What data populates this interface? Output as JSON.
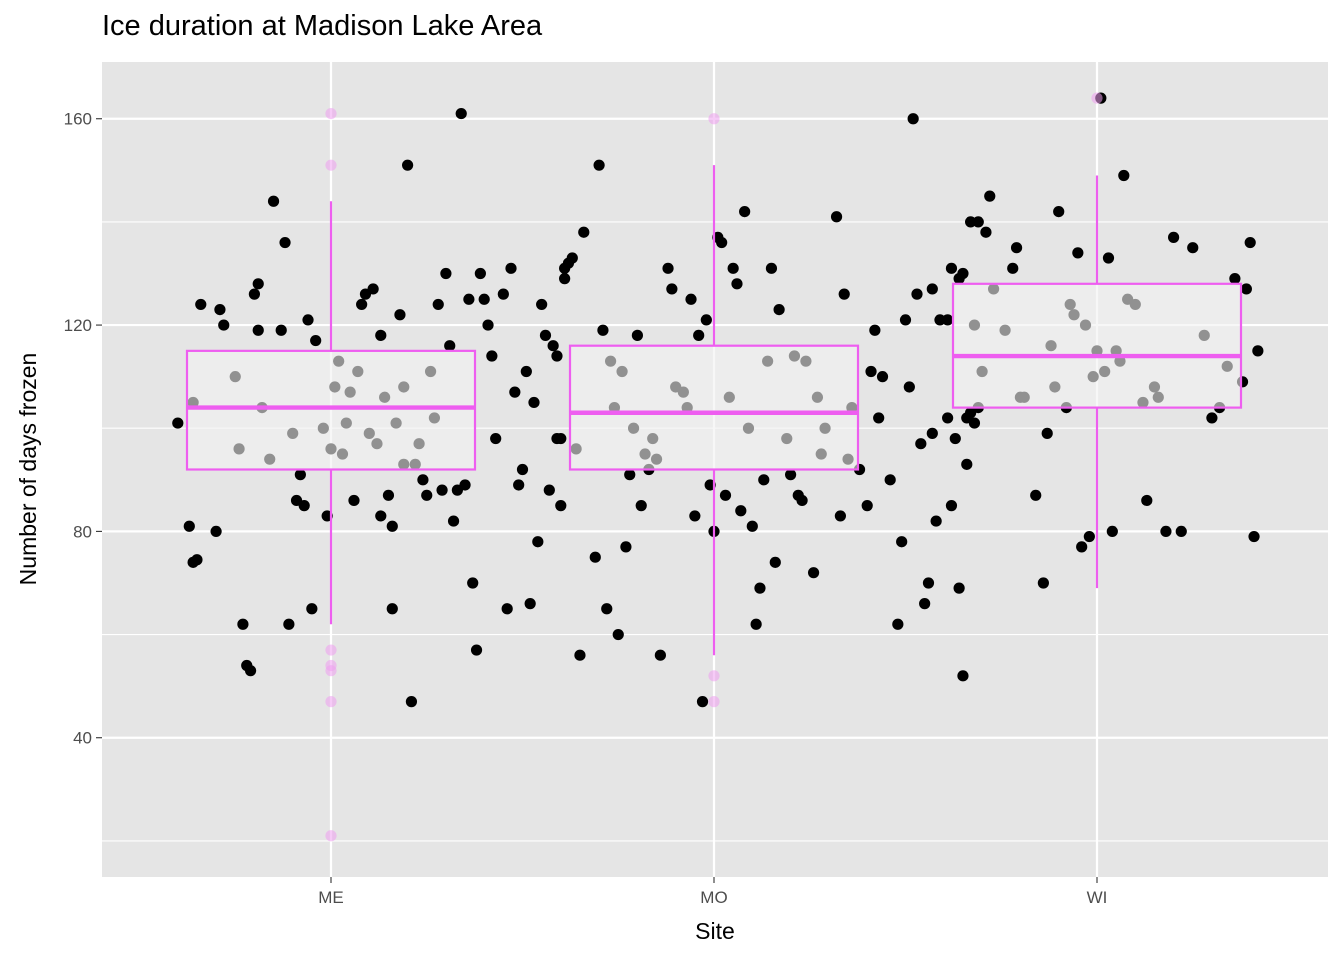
{
  "chart_data": {
    "type": "scatter",
    "title": "Ice duration at Madison Lake Area",
    "xlabel": "Site",
    "ylabel": "Number of days frozen",
    "categories": [
      "ME",
      "MO",
      "WI"
    ],
    "ylim": [
      13,
      171
    ],
    "yticks": [
      40,
      80,
      120,
      160
    ],
    "grid": true,
    "colors": {
      "panel": "#e5e5e5",
      "grid": "#ffffff",
      "points": "#000000",
      "box": "#ee5ef0",
      "box_fill": "#f2f2f2",
      "outlier": "#ee9ef0"
    },
    "boxplots": [
      {
        "site": "ME",
        "q1": 92,
        "median": 104,
        "q3": 115,
        "whisker_low": 62,
        "whisker_high": 144,
        "outliers": [
          21,
          47,
          53,
          54,
          57,
          151,
          161
        ]
      },
      {
        "site": "MO",
        "q1": 92,
        "median": 103,
        "q3": 116,
        "whisker_low": 56,
        "whisker_high": 151,
        "outliers": [
          47,
          52,
          160
        ]
      },
      {
        "site": "WI",
        "q1": 104,
        "median": 114,
        "q3": 128,
        "whisker_low": 69,
        "whisker_high": 149,
        "outliers": [
          164
        ]
      }
    ],
    "series": [
      {
        "site": "ME",
        "points": [
          [
            0.6,
            101
          ],
          [
            0.64,
            105
          ],
          [
            0.63,
            81
          ],
          [
            0.64,
            74
          ],
          [
            0.65,
            74.5
          ],
          [
            0.66,
            124
          ],
          [
            0.7,
            80
          ],
          [
            0.71,
            123
          ],
          [
            0.72,
            120
          ],
          [
            0.75,
            110
          ],
          [
            0.76,
            96
          ],
          [
            0.77,
            62
          ],
          [
            0.78,
            54
          ],
          [
            0.79,
            53
          ],
          [
            0.8,
            126
          ],
          [
            0.81,
            128
          ],
          [
            0.81,
            119
          ],
          [
            0.82,
            104
          ],
          [
            0.84,
            94
          ],
          [
            0.85,
            144
          ],
          [
            0.87,
            119
          ],
          [
            0.88,
            136
          ],
          [
            0.89,
            62
          ],
          [
            0.9,
            99
          ],
          [
            0.91,
            86
          ],
          [
            0.92,
            91
          ],
          [
            0.93,
            85
          ],
          [
            0.94,
            121
          ],
          [
            0.95,
            65
          ],
          [
            0.96,
            117
          ],
          [
            0.99,
            83
          ],
          [
            1.0,
            96
          ],
          [
            1.01,
            108
          ],
          [
            1.02,
            113
          ],
          [
            1.04,
            101
          ],
          [
            1.06,
            86
          ],
          [
            1.07,
            111
          ],
          [
            1.08,
            124
          ],
          [
            1.09,
            126
          ],
          [
            1.1,
            99
          ],
          [
            1.11,
            127
          ],
          [
            1.12,
            97
          ],
          [
            1.13,
            118
          ],
          [
            1.14,
            106
          ],
          [
            1.15,
            87
          ],
          [
            1.16,
            81
          ],
          [
            1.16,
            65
          ],
          [
            1.17,
            101
          ],
          [
            1.18,
            122
          ],
          [
            1.19,
            108
          ],
          [
            1.2,
            151
          ],
          [
            1.21,
            47
          ],
          [
            1.22,
            93
          ],
          [
            1.23,
            97
          ],
          [
            1.24,
            90
          ],
          [
            1.25,
            87
          ],
          [
            1.26,
            111
          ],
          [
            1.28,
            124
          ],
          [
            1.29,
            88
          ],
          [
            1.3,
            130
          ],
          [
            1.31,
            116
          ],
          [
            1.32,
            82
          ],
          [
            1.33,
            88
          ],
          [
            1.34,
            161
          ],
          [
            1.35,
            89
          ],
          [
            1.36,
            125
          ],
          [
            1.37,
            70
          ],
          [
            1.38,
            57
          ],
          [
            1.39,
            130
          ],
          [
            1.4,
            125
          ],
          [
            1.41,
            120
          ],
          [
            1.42,
            114
          ],
          [
            1.45,
            126
          ],
          [
            1.46,
            65
          ],
          [
            1.47,
            131
          ],
          [
            1.48,
            107
          ],
          [
            1.49,
            89
          ],
          [
            1.5,
            92
          ],
          [
            1.51,
            111
          ],
          [
            1.52,
            66
          ],
          [
            1.53,
            105
          ],
          [
            1.54,
            78
          ],
          [
            1.55,
            124
          ],
          [
            1.57,
            88
          ],
          [
            1.58,
            116
          ],
          [
            1.59,
            114
          ],
          [
            1.6,
            98
          ],
          [
            1.61,
            131
          ],
          [
            1.13,
            83
          ],
          [
            1.03,
            95
          ],
          [
            0.98,
            100
          ],
          [
            1.05,
            107
          ],
          [
            1.19,
            93
          ],
          [
            1.27,
            102
          ],
          [
            1.43,
            98
          ],
          [
            1.56,
            118
          ]
        ]
      },
      {
        "site": "MO",
        "points": [
          [
            1.59,
            98
          ],
          [
            1.6,
            85
          ],
          [
            1.61,
            129
          ],
          [
            1.62,
            132
          ],
          [
            1.63,
            133
          ],
          [
            1.64,
            96
          ],
          [
            1.65,
            56
          ],
          [
            1.66,
            138
          ],
          [
            1.69,
            75
          ],
          [
            1.7,
            151
          ],
          [
            1.71,
            119
          ],
          [
            1.72,
            65
          ],
          [
            1.73,
            113
          ],
          [
            1.74,
            104
          ],
          [
            1.75,
            60
          ],
          [
            1.77,
            77
          ],
          [
            1.78,
            91
          ],
          [
            1.79,
            100
          ],
          [
            1.8,
            118
          ],
          [
            1.81,
            85
          ],
          [
            1.82,
            95
          ],
          [
            1.84,
            98
          ],
          [
            1.86,
            56
          ],
          [
            1.88,
            131
          ],
          [
            1.89,
            127
          ],
          [
            1.9,
            108
          ],
          [
            1.93,
            104
          ],
          [
            1.94,
            125
          ],
          [
            1.95,
            83
          ],
          [
            1.96,
            118
          ],
          [
            1.97,
            47
          ],
          [
            1.98,
            121
          ],
          [
            1.99,
            89
          ],
          [
            2.0,
            80
          ],
          [
            2.01,
            137
          ],
          [
            2.02,
            136
          ],
          [
            2.03,
            87
          ],
          [
            2.04,
            106
          ],
          [
            2.05,
            131
          ],
          [
            2.06,
            128
          ],
          [
            2.07,
            84
          ],
          [
            2.08,
            142
          ],
          [
            2.1,
            81
          ],
          [
            2.11,
            62
          ],
          [
            2.12,
            69
          ],
          [
            2.13,
            90
          ],
          [
            2.14,
            113
          ],
          [
            2.15,
            131
          ],
          [
            2.16,
            74
          ],
          [
            2.17,
            123
          ],
          [
            2.19,
            98
          ],
          [
            2.2,
            91
          ],
          [
            2.22,
            87
          ],
          [
            2.23,
            86
          ],
          [
            2.24,
            113
          ],
          [
            2.26,
            72
          ],
          [
            2.27,
            106
          ],
          [
            2.29,
            100
          ],
          [
            2.32,
            141
          ],
          [
            2.33,
            83
          ],
          [
            2.34,
            126
          ],
          [
            2.35,
            94
          ],
          [
            2.38,
            92
          ],
          [
            2.4,
            85
          ],
          [
            2.41,
            111
          ],
          [
            2.42,
            119
          ],
          [
            2.43,
            102
          ],
          [
            2.46,
            90
          ],
          [
            2.48,
            62
          ],
          [
            2.49,
            78
          ],
          [
            2.5,
            121
          ],
          [
            2.51,
            108
          ],
          [
            2.53,
            126
          ],
          [
            2.54,
            97
          ],
          [
            2.55,
            66
          ],
          [
            2.56,
            70
          ],
          [
            2.57,
            127
          ],
          [
            2.58,
            82
          ],
          [
            2.59,
            121
          ],
          [
            2.61,
            121
          ],
          [
            2.62,
            85
          ],
          [
            2.64,
            129
          ],
          [
            2.65,
            52
          ],
          [
            2.66,
            93
          ],
          [
            2.67,
            103
          ],
          [
            2.68,
            101
          ],
          [
            2.69,
            140
          ],
          [
            2.57,
            99
          ],
          [
            2.44,
            110
          ],
          [
            2.36,
            104
          ],
          [
            2.28,
            95
          ],
          [
            2.21,
            114
          ],
          [
            2.09,
            100
          ],
          [
            1.92,
            107
          ],
          [
            1.85,
            94
          ],
          [
            1.76,
            111
          ],
          [
            1.83,
            92
          ],
          [
            2.52,
            160
          ]
        ]
      },
      {
        "site": "WI",
        "points": [
          [
            2.61,
            102
          ],
          [
            2.62,
            131
          ],
          [
            2.63,
            98
          ],
          [
            2.64,
            69
          ],
          [
            2.65,
            130
          ],
          [
            2.66,
            102
          ],
          [
            2.67,
            140
          ],
          [
            2.68,
            120
          ],
          [
            2.69,
            104
          ],
          [
            2.7,
            111
          ],
          [
            2.71,
            138
          ],
          [
            2.72,
            145
          ],
          [
            2.73,
            127
          ],
          [
            2.76,
            119
          ],
          [
            2.78,
            131
          ],
          [
            2.79,
            135
          ],
          [
            2.8,
            106
          ],
          [
            2.81,
            106
          ],
          [
            2.84,
            87
          ],
          [
            2.86,
            70
          ],
          [
            2.87,
            99
          ],
          [
            2.88,
            116
          ],
          [
            2.89,
            108
          ],
          [
            2.9,
            142
          ],
          [
            2.93,
            124
          ],
          [
            2.95,
            134
          ],
          [
            2.96,
            77
          ],
          [
            2.98,
            79
          ],
          [
            2.99,
            110
          ],
          [
            3.0,
            115
          ],
          [
            3.01,
            164
          ],
          [
            3.03,
            133
          ],
          [
            3.04,
            80
          ],
          [
            3.05,
            115
          ],
          [
            3.06,
            113
          ],
          [
            3.08,
            125
          ],
          [
            3.1,
            124
          ],
          [
            3.12,
            105
          ],
          [
            3.13,
            86
          ],
          [
            3.15,
            108
          ],
          [
            3.16,
            106
          ],
          [
            3.18,
            80
          ],
          [
            3.2,
            137
          ],
          [
            3.22,
            80
          ],
          [
            3.25,
            135
          ],
          [
            3.28,
            118
          ],
          [
            3.3,
            102
          ],
          [
            3.32,
            104
          ],
          [
            3.34,
            112
          ],
          [
            3.36,
            129
          ],
          [
            3.38,
            109
          ],
          [
            3.39,
            127
          ],
          [
            3.4,
            136
          ],
          [
            3.41,
            79
          ],
          [
            3.42,
            115
          ],
          [
            3.07,
            149
          ],
          [
            2.94,
            122
          ],
          [
            2.97,
            120
          ],
          [
            2.92,
            104
          ],
          [
            3.02,
            111
          ]
        ]
      }
    ]
  }
}
